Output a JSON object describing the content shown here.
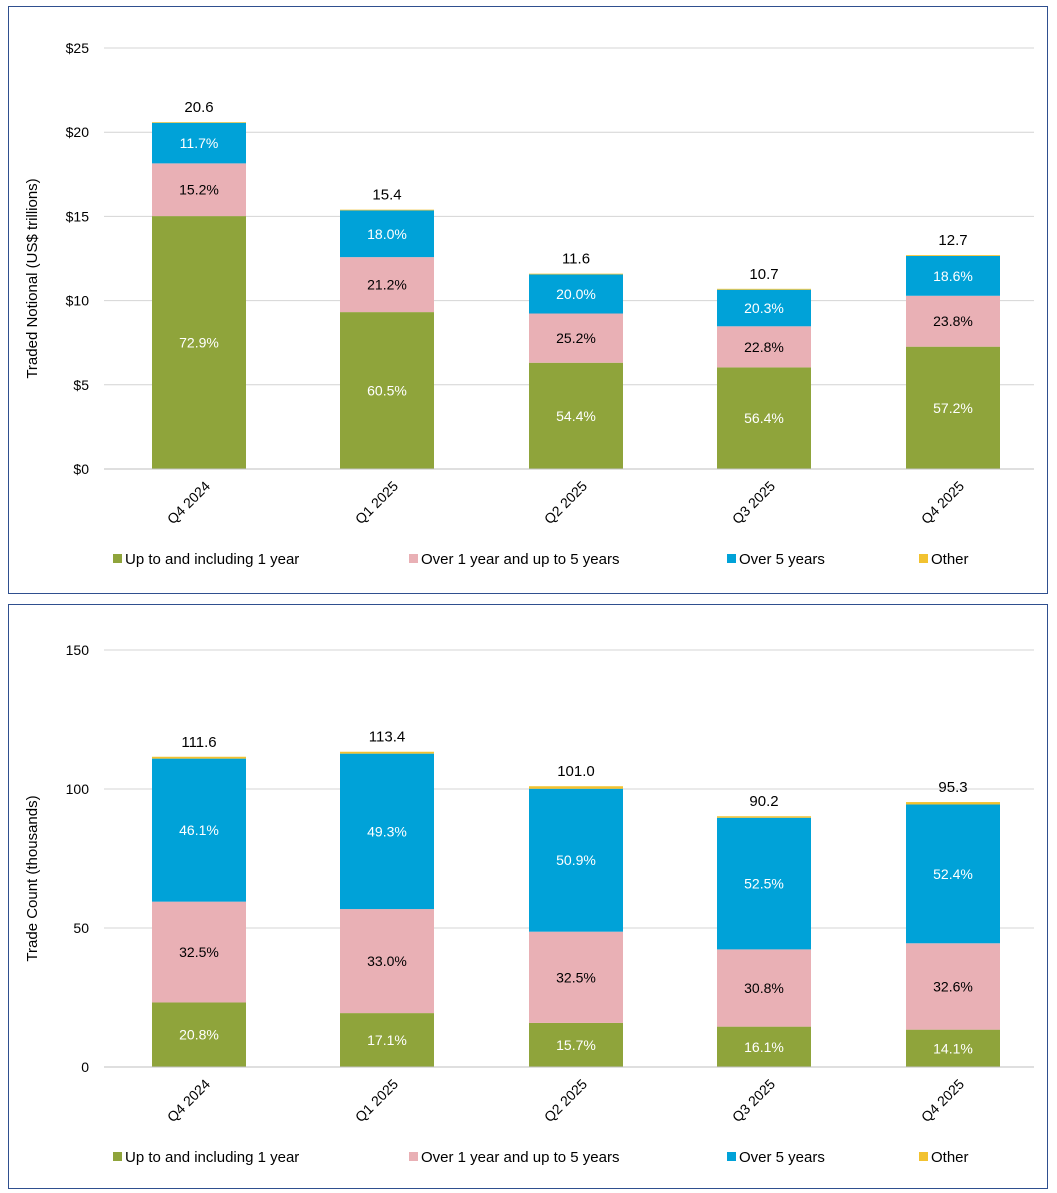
{
  "chart_data": [
    {
      "type": "bar",
      "stacked": true,
      "categories": [
        "Q4 2024",
        "Q1 2025",
        "Q2 2025",
        "Q3 2025",
        "Q4 2025"
      ],
      "ylabel": "Traded Notional (US$ trillions)",
      "xlabel": "",
      "ylim": [
        0,
        25
      ],
      "yticks": [
        0,
        5,
        10,
        15,
        20,
        25
      ],
      "ytick_labels": [
        "$0",
        "$5",
        "$10",
        "$15",
        "$20",
        "$25"
      ],
      "grid": true,
      "legend_position": "bottom",
      "totals": [
        20.6,
        15.4,
        11.6,
        10.7,
        12.7
      ],
      "total_labels": [
        "20.6",
        "15.4",
        "11.6",
        "10.7",
        "12.7"
      ],
      "series": [
        {
          "name": "Up to and including 1 year",
          "color": "#8fa43b",
          "label_color": "#ffffff",
          "percents": [
            72.9,
            60.5,
            54.4,
            56.4,
            57.2
          ],
          "labels": [
            "72.9%",
            "60.5%",
            "54.4%",
            "56.4%",
            "57.2%"
          ]
        },
        {
          "name": "Over 1 year and up to 5 years",
          "color": "#e9b0b5",
          "label_color": "#000000",
          "percents": [
            15.2,
            21.2,
            25.2,
            22.8,
            23.8
          ],
          "labels": [
            "15.2%",
            "21.2%",
            "25.2%",
            "22.8%",
            "23.8%"
          ]
        },
        {
          "name": "Over 5 years",
          "color": "#00a2d8",
          "label_color": "#ffffff",
          "percents": [
            11.7,
            18.0,
            20.0,
            20.3,
            18.6
          ],
          "labels": [
            "11.7%",
            "18.0%",
            "20.0%",
            "20.3%",
            "18.6%"
          ]
        },
        {
          "name": "Other",
          "color": "#f2c230",
          "label_color": "#000000",
          "percents": [
            0.2,
            0.3,
            0.4,
            0.5,
            0.4
          ],
          "labels": [
            "",
            "",
            "",
            "",
            ""
          ]
        }
      ]
    },
    {
      "type": "bar",
      "stacked": true,
      "categories": [
        "Q4 2024",
        "Q1 2025",
        "Q2 2025",
        "Q3 2025",
        "Q4 2025"
      ],
      "ylabel": "Trade Count (thousands)",
      "xlabel": "",
      "ylim": [
        0,
        150
      ],
      "yticks": [
        0,
        50,
        100,
        150
      ],
      "ytick_labels": [
        "0",
        "50",
        "100",
        "150"
      ],
      "grid": true,
      "legend_position": "bottom",
      "totals": [
        111.6,
        113.4,
        101.0,
        90.2,
        95.3
      ],
      "total_labels": [
        "111.6",
        "113.4",
        "101.0",
        "90.2",
        "95.3"
      ],
      "series": [
        {
          "name": "Up to and including 1 year",
          "color": "#8fa43b",
          "label_color": "#ffffff",
          "percents": [
            20.8,
            17.1,
            15.7,
            16.1,
            14.1
          ],
          "labels": [
            "20.8%",
            "17.1%",
            "15.7%",
            "16.1%",
            "14.1%"
          ]
        },
        {
          "name": "Over 1 year and up to 5 years",
          "color": "#e9b0b5",
          "label_color": "#000000",
          "percents": [
            32.5,
            33.0,
            32.5,
            30.8,
            32.6
          ],
          "labels": [
            "32.5%",
            "33.0%",
            "32.5%",
            "30.8%",
            "32.6%"
          ]
        },
        {
          "name": "Over 5 years",
          "color": "#00a2d8",
          "label_color": "#ffffff",
          "percents": [
            46.1,
            49.3,
            50.9,
            52.5,
            52.4
          ],
          "labels": [
            "46.1%",
            "49.3%",
            "50.9%",
            "52.5%",
            "52.4%"
          ]
        },
        {
          "name": "Other",
          "color": "#f2c230",
          "label_color": "#000000",
          "percents": [
            0.6,
            0.6,
            0.9,
            0.6,
            0.9
          ],
          "labels": [
            "",
            "",
            "",
            "",
            ""
          ]
        }
      ]
    }
  ]
}
